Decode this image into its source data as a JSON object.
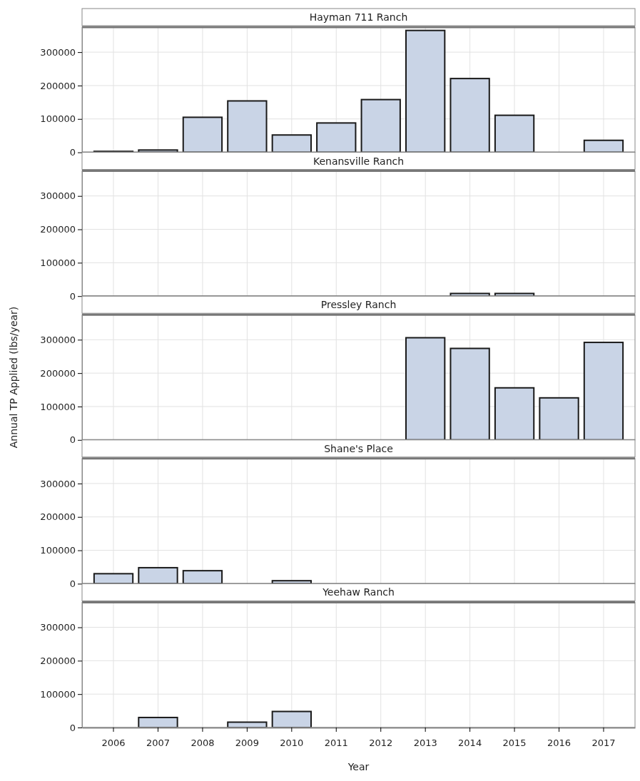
{
  "chart_data": [
    {
      "type": "bar",
      "title": "Hayman 711 Ranch",
      "categories": [
        null,
        null,
        null,
        null,
        null,
        null,
        null,
        null,
        null,
        null,
        null,
        null
      ],
      "values": [
        3000,
        7000,
        105000,
        154000,
        52000,
        88000,
        158000,
        365000,
        221000,
        111000,
        null,
        36000
      ],
      "color": "#c9d4e6",
      "ylim": [
        0,
        375000
      ],
      "yticks": [
        0,
        100000,
        200000,
        300000
      ],
      "grid": true,
      "tick_labels": "y"
    },
    {
      "type": "bar",
      "title": "Kenansville Ranch",
      "categories": [
        null,
        null,
        null,
        null,
        null,
        null,
        null,
        null,
        null,
        null,
        null,
        null
      ],
      "values": [
        null,
        null,
        null,
        null,
        null,
        null,
        null,
        null,
        8000,
        8000,
        null,
        null
      ],
      "color": "#c9d4e6",
      "ylim": [
        0,
        375000
      ],
      "yticks": [
        0,
        100000,
        200000,
        300000
      ],
      "grid": true,
      "tick_labels": "y"
    },
    {
      "type": "bar",
      "title": "Pressley Ranch",
      "ylabel": "Annual TP Applied  (lbs/year)",
      "categories": [
        null,
        null,
        null,
        null,
        null,
        null,
        null,
        null,
        null,
        null,
        null,
        null
      ],
      "values": [
        null,
        null,
        null,
        null,
        null,
        null,
        null,
        306000,
        274000,
        156000,
        126000,
        292000
      ],
      "color": "#c9d4e6",
      "ylim": [
        0,
        375000
      ],
      "yticks": [
        0,
        100000,
        200000,
        300000
      ],
      "grid": true,
      "tick_labels": "y"
    },
    {
      "type": "bar",
      "title": "Shane's Place",
      "categories": [
        null,
        null,
        null,
        null,
        null,
        null,
        null,
        null,
        null,
        null,
        null,
        null
      ],
      "values": [
        30000,
        48000,
        39000,
        null,
        9000,
        null,
        null,
        null,
        null,
        null,
        null,
        null
      ],
      "color": "#c9d4e6",
      "ylim": [
        0,
        375000
      ],
      "yticks": [
        0,
        100000,
        200000,
        300000
      ],
      "grid": true,
      "tick_labels": "y"
    },
    {
      "type": "bar",
      "title": "Yeehaw Ranch",
      "xlabel": "Year",
      "categories": [
        "2006",
        "2007",
        "2008",
        "2009",
        "2010",
        "2011",
        "2012",
        "2013",
        "2014",
        "2015",
        "2016",
        "2017"
      ],
      "values": [
        null,
        30000,
        null,
        16000,
        48000,
        null,
        null,
        null,
        null,
        null,
        null,
        null
      ],
      "color": "#c9d4e6",
      "ylim": [
        0,
        375000
      ],
      "yticks": [
        0,
        100000,
        200000,
        300000
      ],
      "grid": true
    }
  ]
}
